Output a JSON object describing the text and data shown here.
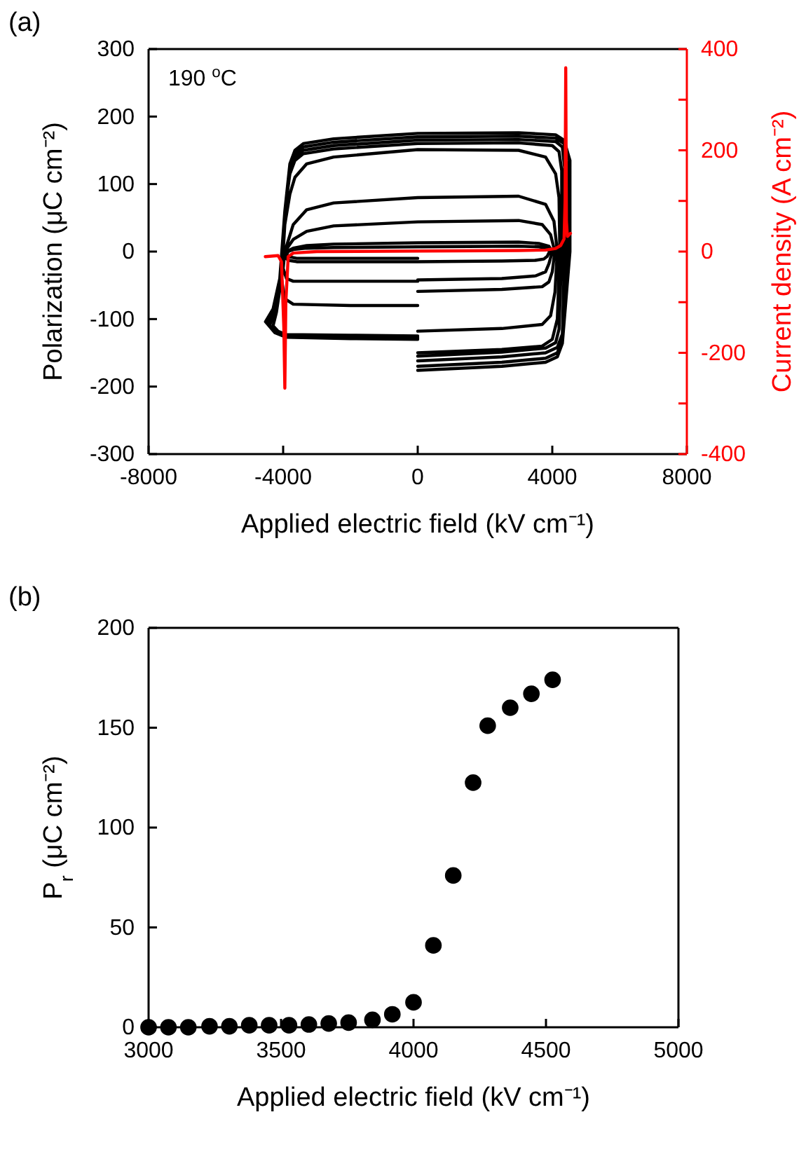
{
  "chart_data": [
    {
      "type": "line",
      "annotations": [
        "(a)",
        "190 $^{o}$C"
      ],
      "xlabel": "Applied electric field (kV cm⁻¹)",
      "ylabel": "Polarization (μC cm⁻²)",
      "y2label": "Current density (A cm⁻²)",
      "xlim": [
        -8000,
        8000
      ],
      "xticks": [
        -8000,
        -4000,
        0,
        4000,
        8000
      ],
      "ylim": [
        -300,
        300
      ],
      "yticks": [
        -300,
        -200,
        -100,
        0,
        100,
        200,
        300
      ],
      "y2lim": [
        -400,
        400
      ],
      "y2ticks": [
        -400,
        {
          "value": -300,
          "label": null
        },
        -200,
        {
          "value": -100,
          "label": null
        },
        0,
        {
          "value": 100,
          "label": null
        },
        200,
        {
          "value": 300,
          "label": null
        },
        400
      ],
      "grid": false,
      "marker": "none",
      "line_style": "solid",
      "series": [
        {
          "color": "#000000",
          "x": [
            0,
            2500,
            3800,
            4150,
            4300,
            4525,
            4525,
            4350,
            4100,
            3000,
            0,
            -2500,
            -3400,
            -3650,
            -3800,
            -3950,
            -4100,
            -4300,
            -4525,
            -4250,
            -3900,
            -2000,
            0,
            null,
            0,
            2500,
            3800,
            4150,
            4300,
            4445,
            4445,
            4350,
            4100,
            3000,
            0,
            -2500,
            -3400,
            -3650,
            -3800,
            -3950,
            -4100,
            -4300,
            -4480,
            -4250,
            -3900,
            -2000,
            0,
            null,
            0,
            2500,
            3800,
            4150,
            4300,
            4365,
            4365,
            4300,
            4100,
            3000,
            0,
            -2500,
            -3400,
            -3650,
            -3800,
            -3950,
            -4100,
            -4300,
            -4450,
            -4250,
            -3900,
            -2000,
            0,
            null,
            0,
            2500,
            3800,
            4100,
            4200,
            4280,
            4280,
            4200,
            4000,
            3000,
            0,
            -2500,
            -3400,
            -3650,
            -3800,
            -3950,
            -4100,
            -4250,
            -4400,
            -4200,
            -3900,
            -2000,
            0,
            null,
            0,
            2500,
            3700,
            4000,
            4150,
            4225,
            4200,
            4100,
            3800,
            3000,
            0,
            -2500,
            -3300,
            -3650,
            -3800,
            -3950,
            -4050,
            -4200,
            -4300,
            -4150,
            -3900,
            -2000,
            0,
            null,
            0,
            2500,
            3700,
            3950,
            4080,
            4150,
            4050,
            3800,
            3000,
            0,
            -2500,
            -3300,
            -3700,
            -3950,
            -4050,
            -3950,
            -3700,
            -2000,
            0,
            null,
            0,
            2500,
            3700,
            3900,
            4000,
            4075,
            3950,
            3700,
            3000,
            0,
            -2500,
            -3300,
            -3700,
            -3950,
            -4000,
            -3900,
            -3700,
            -2000,
            0,
            null,
            0,
            2500,
            3500,
            3800,
            3900,
            4000,
            3900,
            3600,
            3000,
            0,
            -2500,
            -3300,
            -3700,
            -3900,
            -3950,
            -3850,
            -3600,
            -2000,
            0,
            null,
            0,
            2500,
            3500,
            3750,
            3850,
            3920,
            3850,
            3600,
            3000,
            0,
            -2500,
            -3300,
            -3700,
            -3850,
            -3900,
            -3800,
            -3600,
            -2000,
            0
          ],
          "values": [
            -176,
            -170,
            -164,
            -156,
            -136,
            0,
            135,
            165,
            173,
            176,
            175,
            167,
            160,
            150,
            130,
            60,
            -40,
            -85,
            -104,
            -120,
            -127,
            -129,
            -130,
            null,
            -170,
            -164,
            -158,
            -150,
            -130,
            0,
            130,
            160,
            168,
            171,
            170,
            162,
            155,
            145,
            125,
            60,
            -40,
            -85,
            -106,
            -120,
            -126,
            -128,
            -129,
            null,
            -162,
            -156,
            -150,
            -142,
            -122,
            0,
            125,
            155,
            163,
            166,
            165,
            157,
            150,
            140,
            120,
            60,
            -40,
            -85,
            -108,
            -120,
            -125,
            -127,
            -128,
            null,
            -155,
            -149,
            -143,
            -135,
            -115,
            0,
            120,
            148,
            157,
            161,
            160,
            152,
            145,
            135,
            115,
            60,
            -40,
            -85,
            -110,
            -118,
            -124,
            -126,
            -127,
            null,
            -150,
            -145,
            -140,
            -130,
            -100,
            0,
            80,
            115,
            140,
            150,
            151,
            140,
            130,
            110,
            85,
            40,
            -40,
            -90,
            -110,
            -118,
            -123,
            -124,
            -125,
            null,
            -118,
            -114,
            -108,
            -95,
            -60,
            0,
            45,
            70,
            82,
            80,
            72,
            62,
            40,
            0,
            -40,
            -70,
            -78,
            -80,
            -80,
            null,
            -59,
            -56,
            -52,
            -45,
            -30,
            0,
            25,
            40,
            46,
            44,
            38,
            30,
            18,
            0,
            -25,
            -40,
            -44,
            -44,
            -44,
            null,
            -42,
            -40,
            -36,
            -30,
            -18,
            0,
            8,
            12,
            14,
            13,
            11,
            9,
            5,
            0,
            -8,
            -13,
            -15,
            -15,
            -15,
            null,
            -15,
            -14,
            -13,
            -11,
            -7,
            0,
            5,
            7,
            8,
            7,
            6,
            5,
            3,
            0,
            -5,
            -8,
            -10,
            -10,
            -10
          ]
        },
        {
          "color": "#ff0000",
          "axis": "y2",
          "x": [
            -4530,
            -4150,
            -4050,
            -3980,
            -3950,
            -3920,
            -3850,
            -3700,
            -3000,
            0,
            3000,
            3800,
            4100,
            4250,
            4350,
            4380,
            4400,
            4420,
            4450,
            4540
          ],
          "values": [
            -10,
            -8,
            -20,
            -150,
            -270,
            -100,
            -10,
            -3,
            0,
            1,
            2,
            3,
            6,
            12,
            25,
            100,
            363,
            60,
            30,
            36
          ]
        }
      ]
    },
    {
      "type": "scatter",
      "annotations": [
        "(b)"
      ],
      "xlabel": "Applied electric field (kV cm⁻¹)",
      "ylabel": "P$_{r}$ (μC cm⁻²)",
      "xlim": [
        3000,
        5000
      ],
      "xticks": [
        3000,
        3500,
        4000,
        4500,
        5000
      ],
      "ylim": [
        0,
        200
      ],
      "yticks": [
        0,
        50,
        100,
        150,
        200
      ],
      "grid": false,
      "marker": "circle",
      "series": [
        {
          "color": "#000000",
          "x": [
            3000,
            3075,
            3150,
            3230,
            3305,
            3380,
            3455,
            3530,
            3605,
            3680,
            3755,
            3845,
            3920,
            4000,
            4075,
            4150,
            4225,
            4280,
            4365,
            4445,
            4525
          ],
          "values": [
            0,
            0,
            0,
            0.5,
            0.5,
            1,
            1,
            1,
            1.4,
            1.9,
            2.3,
            3.7,
            6.5,
            12.5,
            41,
            76,
            122.5,
            151,
            160,
            167,
            174
          ]
        }
      ]
    }
  ]
}
